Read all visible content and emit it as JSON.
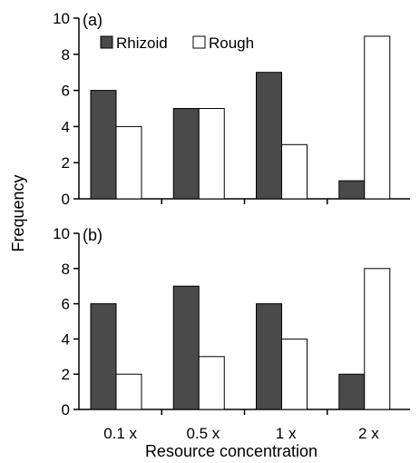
{
  "chart_data": {
    "type": "bar",
    "xlabel": "Resource concentration",
    "ylabel": "Frequency",
    "categories": [
      "0.1 x",
      "0.5 x",
      "1 x",
      "2 x"
    ],
    "legend": {
      "placement": "top-left",
      "entries": [
        "Rhizoid",
        "Rough"
      ]
    },
    "colors": {
      "Rhizoid": "#4a4a4a",
      "Rough": "#ffffff",
      "outline": "#000000"
    },
    "panels": [
      {
        "label": "(a)",
        "ylim": [
          0,
          10
        ],
        "yticks": [
          0,
          2,
          4,
          6,
          8,
          10
        ],
        "series": [
          {
            "name": "Rhizoid",
            "values": [
              6,
              5,
              7,
              1
            ]
          },
          {
            "name": "Rough",
            "values": [
              4,
              5,
              3,
              9
            ]
          }
        ]
      },
      {
        "label": "(b)",
        "ylim": [
          0,
          10
        ],
        "yticks": [
          0,
          2,
          4,
          6,
          8,
          10
        ],
        "series": [
          {
            "name": "Rhizoid",
            "values": [
              6,
              7,
              6,
              2
            ]
          },
          {
            "name": "Rough",
            "values": [
              2,
              3,
              4,
              8
            ]
          }
        ]
      }
    ]
  }
}
